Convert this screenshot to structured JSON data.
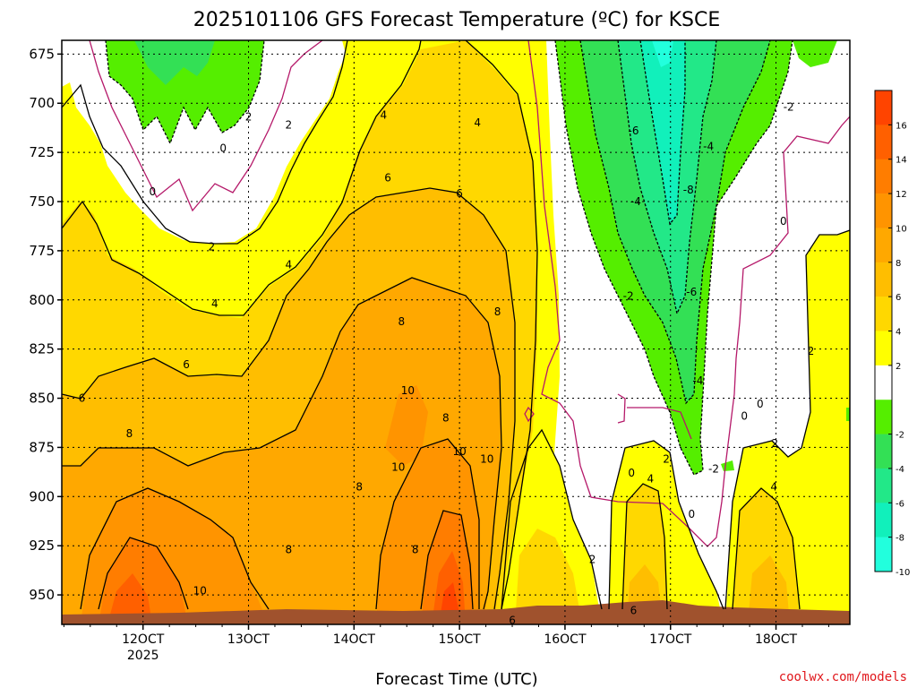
{
  "chart_data": {
    "type": "heatmap",
    "title": "2025101106 GFS Forecast Temperature (ºC) for KSCE",
    "xlabel": "Forecast Time (UTC)",
    "ylabel": "",
    "credit": "coolwx.com/models",
    "x_ticks": [
      {
        "label": "12OCT",
        "sub": "2025",
        "day": 12
      },
      {
        "label": "13OCT",
        "sub": "",
        "day": 13
      },
      {
        "label": "14OCT",
        "sub": "",
        "day": 14
      },
      {
        "label": "15OCT",
        "sub": "",
        "day": 15
      },
      {
        "label": "16OCT",
        "sub": "",
        "day": 16
      },
      {
        "label": "17OCT",
        "sub": "",
        "day": 17
      },
      {
        "label": "18OCT",
        "sub": "",
        "day": 18
      }
    ],
    "xlim": [
      11.23,
      18.7
    ],
    "y_ticks": [
      675,
      700,
      725,
      750,
      775,
      800,
      825,
      850,
      875,
      900,
      925,
      950
    ],
    "ylim": [
      668,
      965
    ],
    "y_scale": "linear",
    "colorbar": {
      "ticks": [
        16,
        14,
        12,
        10,
        8,
        6,
        4,
        2,
        -2,
        -4,
        -6,
        -8,
        -10
      ],
      "bands": [
        {
          "lo": 16,
          "hi": 18,
          "color": "#ff4400"
        },
        {
          "lo": 14,
          "hi": 16,
          "color": "#ff6000"
        },
        {
          "lo": 12,
          "hi": 14,
          "color": "#ff7d00"
        },
        {
          "lo": 10,
          "hi": 12,
          "color": "#ff9400"
        },
        {
          "lo": 8,
          "hi": 10,
          "color": "#ffa800"
        },
        {
          "lo": 6,
          "hi": 8,
          "color": "#ffbe00"
        },
        {
          "lo": 4,
          "hi": 6,
          "color": "#ffd800"
        },
        {
          "lo": 2,
          "hi": 4,
          "color": "#ffff00"
        },
        {
          "lo": -2,
          "hi": 2,
          "color": "#ffffff"
        },
        {
          "lo": -4,
          "hi": -2,
          "color": "#55ee00"
        },
        {
          "lo": -6,
          "hi": -4,
          "color": "#33e055"
        },
        {
          "lo": -8,
          "hi": -6,
          "color": "#22e888"
        },
        {
          "lo": -10,
          "hi": -8,
          "color": "#11f0bb"
        },
        {
          "lo": -12,
          "hi": -10,
          "color": "#22ffdd"
        }
      ]
    },
    "contour_labels": [
      {
        "text": "2",
        "x": 13.0,
        "p": 707
      },
      {
        "text": "2",
        "x": 13.38,
        "p": 711
      },
      {
        "text": "0",
        "x": 12.76,
        "p": 723
      },
      {
        "text": "0",
        "x": 12.09,
        "p": 745
      },
      {
        "text": "4",
        "x": 14.28,
        "p": 706
      },
      {
        "text": "4",
        "x": 15.17,
        "p": 710
      },
      {
        "text": "6",
        "x": 14.32,
        "p": 738
      },
      {
        "text": "6",
        "x": 15.0,
        "p": 746
      },
      {
        "text": "2",
        "x": 12.65,
        "p": 773
      },
      {
        "text": "4",
        "x": 13.38,
        "p": 782
      },
      {
        "text": "4",
        "x": 12.68,
        "p": 802
      },
      {
        "text": "8",
        "x": 14.45,
        "p": 811
      },
      {
        "text": "8",
        "x": 15.36,
        "p": 806
      },
      {
        "text": "6",
        "x": 12.41,
        "p": 833
      },
      {
        "text": "6",
        "x": 11.42,
        "p": 850
      },
      {
        "text": "10",
        "x": 14.51,
        "p": 846
      },
      {
        "text": "8",
        "x": 14.87,
        "p": 860
      },
      {
        "text": "8",
        "x": 11.87,
        "p": 868
      },
      {
        "text": "10",
        "x": 15.0,
        "p": 877
      },
      {
        "text": "10",
        "x": 15.26,
        "p": 881
      },
      {
        "text": "10",
        "x": 14.42,
        "p": 885
      },
      {
        "text": "8",
        "x": 14.05,
        "p": 895
      },
      {
        "text": "8",
        "x": 14.58,
        "p": 927
      },
      {
        "text": "8",
        "x": 13.38,
        "p": 927
      },
      {
        "text": "10",
        "x": 12.54,
        "p": 948
      },
      {
        "text": "2",
        "x": 16.26,
        "p": 932
      },
      {
        "text": "6",
        "x": 15.5,
        "p": 963
      },
      {
        "text": "-6",
        "x": 16.65,
        "p": 714
      },
      {
        "text": "-4",
        "x": 17.36,
        "p": 722
      },
      {
        "text": "-2",
        "x": 18.12,
        "p": 702
      },
      {
        "text": "-8",
        "x": 17.17,
        "p": 744
      },
      {
        "text": "-4",
        "x": 16.67,
        "p": 750
      },
      {
        "text": "0",
        "x": 18.07,
        "p": 760
      },
      {
        "text": "-2",
        "x": 16.6,
        "p": 798
      },
      {
        "text": "-6",
        "x": 17.2,
        "p": 796
      },
      {
        "text": "2",
        "x": 18.33,
        "p": 826
      },
      {
        "text": "-4",
        "x": 17.26,
        "p": 841
      },
      {
        "text": "0",
        "x": 17.85,
        "p": 853
      },
      {
        "text": "0",
        "x": 17.7,
        "p": 859
      },
      {
        "text": "2",
        "x": 17.99,
        "p": 873
      },
      {
        "text": "2",
        "x": 16.96,
        "p": 881
      },
      {
        "text": "0",
        "x": 16.63,
        "p": 888
      },
      {
        "text": "4",
        "x": 16.81,
        "p": 891
      },
      {
        "text": "-2",
        "x": 17.41,
        "p": 886
      },
      {
        "text": "4",
        "x": 17.98,
        "p": 895
      },
      {
        "text": "0",
        "x": 17.2,
        "p": 909
      },
      {
        "text": "6",
        "x": 16.65,
        "p": 958
      }
    ]
  }
}
